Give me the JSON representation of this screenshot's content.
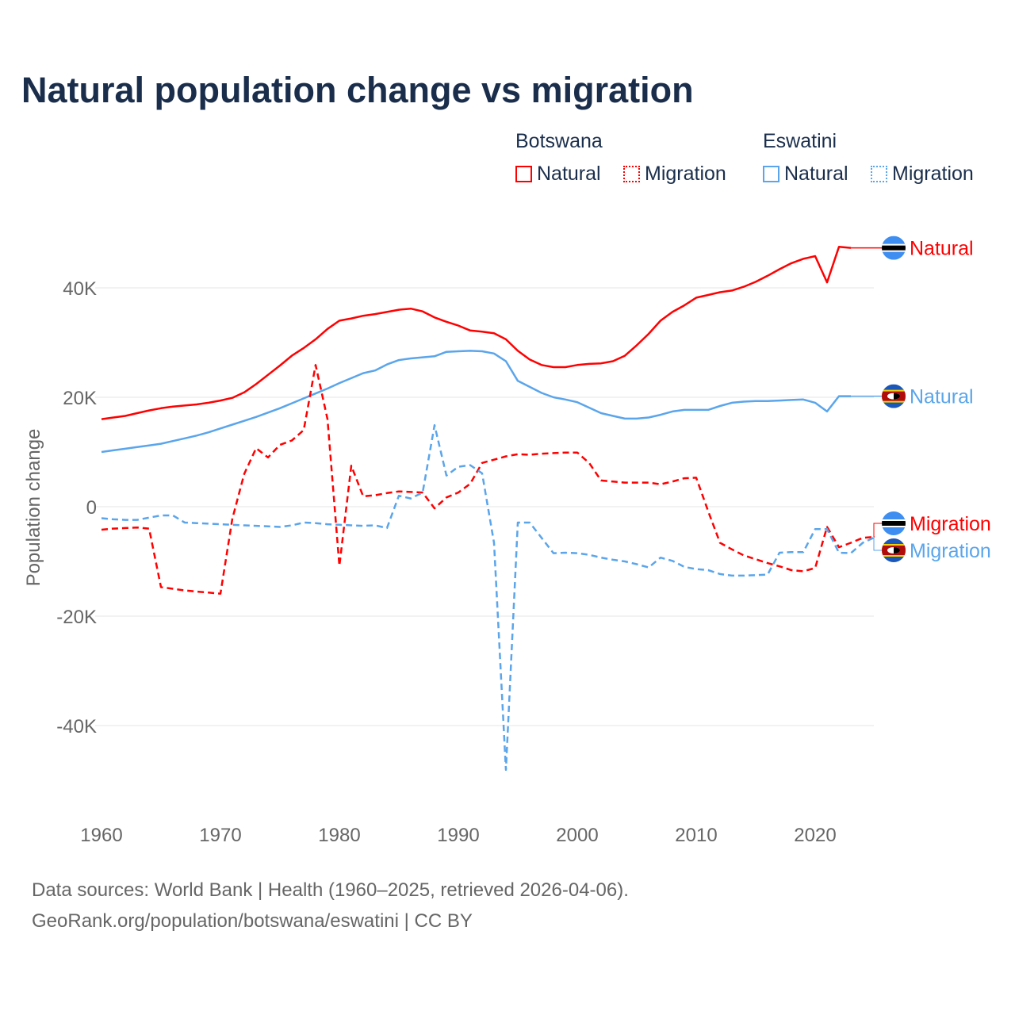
{
  "title": "Natural population change vs migration",
  "legend": {
    "groups": [
      {
        "name": "Botswana",
        "items": [
          "Natural",
          "Migration"
        ],
        "color": "#ff0000"
      },
      {
        "name": "Eswatini",
        "items": [
          "Natural",
          "Migration"
        ],
        "color": "#5aa5eb"
      }
    ]
  },
  "footer": {
    "line1": "Data sources: World Bank | Health (1960–2025, retrieved 2026-04-06).",
    "line2": "GeoRank.org/population/botswana/eswatini | CC BY"
  },
  "chart_data": {
    "type": "line",
    "title": "Natural population change vs migration",
    "ylabel": "Population change",
    "xlabel": "",
    "xlim": [
      1960,
      2025
    ],
    "ylim": [
      -50000,
      50000
    ],
    "x_ticks": [
      1960,
      1970,
      1980,
      1990,
      2000,
      2010,
      2020
    ],
    "x_tick_labels": [
      "1960",
      "1970",
      "1980",
      "1990",
      "2000",
      "2010",
      "2020"
    ],
    "y_ticks": [
      40000,
      20000,
      0,
      -20000,
      -40000
    ],
    "y_tick_labels": [
      "40K",
      "20K",
      "0",
      "-20K",
      "-40K"
    ],
    "grid": true,
    "series": [
      {
        "name": "Botswana Natural",
        "end_label": "Natural",
        "color": "#ff0000",
        "dash": "solid",
        "flag": "botswana",
        "start": 1960,
        "values_k": [
          16.0,
          16.3,
          16.6,
          17.1,
          17.6,
          18.0,
          18.3,
          18.5,
          18.7,
          19.0,
          19.4,
          19.9,
          20.9,
          22.4,
          24.1,
          25.8,
          27.6,
          29.0,
          30.6,
          32.5,
          34.0,
          34.4,
          34.9,
          35.2,
          35.6,
          36.0,
          36.2,
          35.7,
          34.6,
          33.8,
          33.1,
          32.2,
          32.0,
          31.7,
          30.6,
          28.5,
          26.9,
          25.9,
          25.5,
          25.5,
          25.9,
          26.1,
          26.2,
          26.6,
          27.6,
          29.5,
          31.6,
          34.0,
          35.6,
          36.8,
          38.2,
          38.7,
          39.2,
          39.5,
          40.2,
          41.1,
          42.2,
          43.4,
          44.5,
          45.3,
          45.8,
          41.0,
          47.5,
          47.3
        ]
      },
      {
        "name": "Eswatini Natural",
        "end_label": "Natural",
        "color": "#5aa5eb",
        "dash": "solid",
        "flag": "eswatini",
        "start": 1960,
        "values_k": [
          10.0,
          10.3,
          10.6,
          10.9,
          11.2,
          11.5,
          12.0,
          12.5,
          13.0,
          13.6,
          14.3,
          15.0,
          15.7,
          16.4,
          17.2,
          18.0,
          18.9,
          19.8,
          20.7,
          21.6,
          22.6,
          23.5,
          24.4,
          24.9,
          26.0,
          26.8,
          27.1,
          27.3,
          27.5,
          28.3,
          28.4,
          28.5,
          28.4,
          28.0,
          26.6,
          23.0,
          21.9,
          20.8,
          20.0,
          19.6,
          19.1,
          18.1,
          17.1,
          16.6,
          16.1,
          16.1,
          16.3,
          16.8,
          17.4,
          17.7,
          17.7,
          17.7,
          18.4,
          19.0,
          19.2,
          19.3,
          19.3,
          19.4,
          19.5,
          19.6,
          19.0,
          17.4,
          20.2,
          20.2
        ]
      },
      {
        "name": "Botswana Migration",
        "end_label": "Migration",
        "color": "#ff0000",
        "dash": "dashed",
        "flag": "botswana",
        "start": 1960,
        "values_k": [
          -4.2,
          -4.0,
          -3.9,
          -3.8,
          -4.0,
          -14.7,
          -15.0,
          -15.3,
          -15.5,
          -15.7,
          -15.9,
          -2.2,
          6.0,
          10.7,
          9.0,
          11.3,
          12.1,
          14.0,
          25.9,
          16.0,
          -10.8,
          7.5,
          1.9,
          2.1,
          2.5,
          2.8,
          2.7,
          2.6,
          -0.3,
          1.7,
          2.6,
          4.2,
          8.0,
          8.6,
          9.2,
          9.6,
          9.5,
          9.7,
          9.8,
          9.9,
          9.9,
          8.0,
          4.8,
          4.6,
          4.4,
          4.4,
          4.4,
          4.1,
          4.6,
          5.2,
          5.3,
          -0.8,
          -6.6,
          -7.8,
          -8.9,
          -9.6,
          -10.3,
          -10.9,
          -11.6,
          -11.8,
          -11.2,
          -3.7,
          -7.4,
          -6.6,
          -5.7,
          -5.5
        ]
      },
      {
        "name": "Eswatini Migration",
        "end_label": "Migration",
        "color": "#5aa5eb",
        "dash": "dashed",
        "flag": "eswatini",
        "start": 1960,
        "values_k": [
          -2.1,
          -2.3,
          -2.4,
          -2.4,
          -2.0,
          -1.6,
          -1.6,
          -2.9,
          -3.0,
          -3.1,
          -3.2,
          -3.3,
          -3.4,
          -3.5,
          -3.6,
          -3.7,
          -3.4,
          -2.9,
          -3.0,
          -3.2,
          -3.3,
          -3.4,
          -3.5,
          -3.4,
          -3.9,
          2.0,
          1.5,
          2.6,
          14.9,
          5.7,
          7.3,
          7.6,
          6.1,
          -6.6,
          -48.1,
          -2.9,
          -2.9,
          -5.7,
          -8.5,
          -8.4,
          -8.5,
          -8.8,
          -9.3,
          -9.7,
          -10.0,
          -10.5,
          -11.1,
          -9.3,
          -9.9,
          -11.0,
          -11.4,
          -11.6,
          -12.3,
          -12.6,
          -12.6,
          -12.5,
          -12.4,
          -8.4,
          -8.3,
          -8.3,
          -4.1,
          -4.1,
          -8.4,
          -8.5,
          -6.6,
          -5.6
        ]
      }
    ]
  }
}
